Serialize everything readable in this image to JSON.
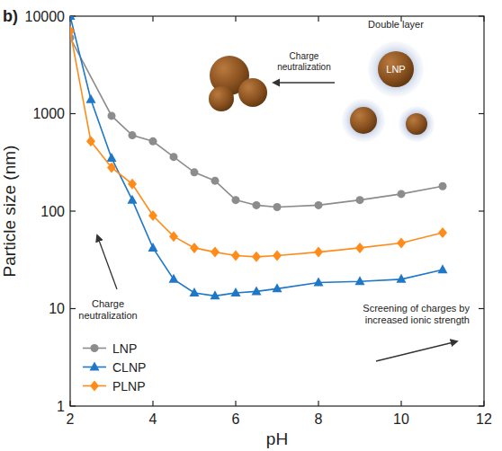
{
  "chart_data": {
    "type": "line",
    "panel_label": "b)",
    "x_label": "pH",
    "y_label": "Particle size (nm)",
    "log": "y",
    "grid": false,
    "legend": "lower left",
    "xlim": [
      2,
      12
    ],
    "xticks": [
      2,
      4,
      6,
      8,
      10,
      12
    ],
    "ylim": [
      1,
      10000
    ],
    "yticks": [
      1,
      10,
      100,
      1000,
      10000
    ],
    "series": [
      {
        "name": "LNP",
        "color": "#8c8c8c",
        "marker": "circle",
        "x": [
          2,
          3,
          3.5,
          4,
          4.5,
          5,
          5.5,
          6,
          6.5,
          7,
          8,
          9,
          10,
          11
        ],
        "values": [
          6000,
          950,
          600,
          520,
          360,
          250,
          205,
          130,
          115,
          110,
          115,
          130,
          150,
          180
        ]
      },
      {
        "name": "CLNP",
        "color": "#1f77c8",
        "marker": "triangle",
        "x": [
          2,
          2.5,
          3,
          3.5,
          4,
          4.5,
          5,
          5.5,
          6,
          6.5,
          7,
          8,
          9,
          10,
          11
        ],
        "values": [
          10000,
          1400,
          350,
          130,
          42,
          20,
          14.5,
          13.5,
          14.5,
          15,
          16,
          18.5,
          19,
          20,
          25
        ]
      },
      {
        "name": "PLNP",
        "color": "#ff8c1a",
        "marker": "diamond",
        "x": [
          2,
          2.5,
          3,
          3.5,
          4,
          4.5,
          5,
          5.5,
          6,
          6.5,
          7,
          8,
          9,
          10,
          11
        ],
        "values": [
          7000,
          520,
          280,
          190,
          90,
          55,
          42,
          38,
          35,
          34,
          35,
          38,
          42,
          47,
          60
        ]
      }
    ],
    "annotations": [
      "Double layer",
      "LNP",
      "Charge neutralization",
      "Charge neutralization",
      "Screening of charges by increased ionic strength"
    ]
  }
}
